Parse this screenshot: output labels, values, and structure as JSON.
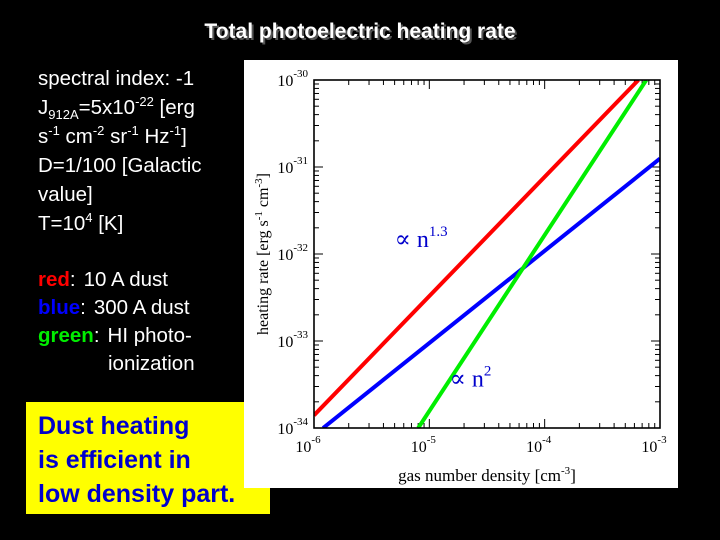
{
  "slide": {
    "title": "Total photoelectric heating rate"
  },
  "parameters": {
    "spectral_index": "spectral index: -1",
    "j_label": "J",
    "j_sub": "912A",
    "j_value": "=5x10",
    "j_exp": "-22",
    "j_unit_1": " [erg",
    "j_unit_s": "s",
    "j_unit_s_exp": "-1",
    "j_unit_cm": " cm",
    "j_unit_cm_exp": "-2",
    "j_unit_sr": " sr",
    "j_unit_sr_exp": "-1",
    "j_unit_hz": " Hz",
    "j_unit_hz_exp": "-1",
    "j_unit_close": "]",
    "d_line_1": "D=1/100 [Galactic",
    "d_line_2": "value]",
    "t_base": "T=10",
    "t_exp": "4",
    "t_unit": " [K]"
  },
  "legend": {
    "red_key": "red",
    "red_desc": "10 A dust",
    "blue_key": "blue",
    "blue_desc": "300 A dust",
    "green_key": "green",
    "green_desc_1": "HI photo-",
    "green_desc_2": "ionization",
    "colon": ":"
  },
  "callout": {
    "line1": "Dust heating",
    "line2": "is efficient in",
    "line3": "low density part."
  },
  "colors": {
    "red": "#ff0000",
    "blue": "#0000ff",
    "green": "#00ee00",
    "callout_background": "#ffff00",
    "callout_text": "#0000cc"
  },
  "chart_data": {
    "type": "line",
    "title": "",
    "xlabel": "gas number density [cm",
    "xlabel_exp": "-3",
    "xlabel_close": "]",
    "ylabel": "heating rate [erg s",
    "ylabel_exp": "-1",
    "ylabel_mid": " cm",
    "ylabel_exp2": "-3",
    "ylabel_close": "]",
    "x_scale": "log",
    "y_scale": "log",
    "xlim": [
      1e-06,
      0.001
    ],
    "ylim": [
      1e-34,
      1e-30
    ],
    "x_ticks": [
      {
        "value": 1e-06,
        "base": "10",
        "exp": "-6"
      },
      {
        "value": 1e-05,
        "base": "10",
        "exp": "-5"
      },
      {
        "value": 0.0001,
        "base": "10",
        "exp": "-4"
      },
      {
        "value": 0.001,
        "base": "10",
        "exp": "-3"
      }
    ],
    "y_ticks": [
      {
        "value": 1e-34,
        "base": "10",
        "exp": "-34"
      },
      {
        "value": 1e-33,
        "base": "10",
        "exp": "-33"
      },
      {
        "value": 1e-32,
        "base": "10",
        "exp": "-32"
      },
      {
        "value": 1e-31,
        "base": "10",
        "exp": "-31"
      },
      {
        "value": 1e-30,
        "base": "10",
        "exp": "-30"
      }
    ],
    "series": [
      {
        "color": "#ff0000",
        "x": [
          1e-06,
          0.00065
        ],
        "y": [
          1.4e-34,
          1e-30
        ]
      },
      {
        "color": "#0000ff",
        "x": [
          1.2e-06,
          0.001
        ],
        "y": [
          1e-34,
          1.25e-31
        ]
      },
      {
        "color": "#00ee00",
        "x": [
          8e-06,
          0.00076
        ],
        "y": [
          1e-34,
          1e-30
        ]
      }
    ],
    "annotations": [
      {
        "symbol": "∝",
        "text": "n",
        "exp": "1.3",
        "x": 5e-06,
        "y": 1.2e-32
      },
      {
        "symbol": "∝",
        "text": "n",
        "exp": "2",
        "x": 1.5e-05,
        "y": 3e-34
      }
    ]
  }
}
